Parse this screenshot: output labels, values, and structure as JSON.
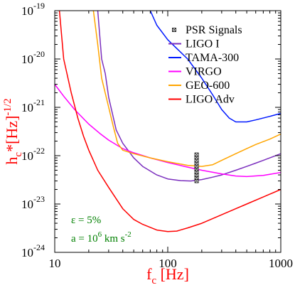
{
  "chart_data": {
    "type": "line",
    "xscale": "log",
    "yscale": "log",
    "xlim": [
      10,
      1000
    ],
    "ylim": [
      1e-24,
      1e-19
    ],
    "grid": false,
    "legend_position": "top-right",
    "xlabel": {
      "main": "f",
      "sub": "c",
      "units": " [Hz]",
      "color": "#ff0000"
    },
    "ylabel": {
      "main": "h",
      "sub": "c",
      "units": "*[Hz]",
      "sup": "-1/2",
      "color": "#ff0000"
    },
    "x_ticks": [
      {
        "value": 10,
        "label": "10"
      },
      {
        "value": 100,
        "label": "100"
      },
      {
        "value": 1000,
        "label": "1000"
      }
    ],
    "y_ticks": [
      {
        "value": 1e-19,
        "exponent": "-19"
      },
      {
        "value": 1e-20,
        "exponent": "-20"
      },
      {
        "value": 1e-21,
        "exponent": "-21"
      },
      {
        "value": 1e-22,
        "exponent": "-22"
      },
      {
        "value": 1e-23,
        "exponent": "-23"
      },
      {
        "value": 1e-24,
        "exponent": "-24"
      }
    ],
    "tick_base": "10",
    "series": [
      {
        "name": "LIGO I",
        "color": "#7b2fbe",
        "x": [
          24,
          26,
          28,
          30,
          35,
          40,
          50,
          60,
          80,
          100,
          130,
          160,
          200,
          250,
          300,
          400,
          500,
          600,
          700,
          800,
          1000
        ],
        "y": [
          1e-19,
          1e-20,
          5e-21,
          1.6e-21,
          3.4e-22,
          1.8e-22,
          9e-23,
          6e-23,
          4e-23,
          3.3e-23,
          3.05e-23,
          3e-23,
          3.2e-23,
          3.6e-23,
          4e-23,
          5e-23,
          6e-23,
          7e-23,
          8e-23,
          9e-23,
          1.1e-22
        ]
      },
      {
        "name": "TAMA-300",
        "color": "#0019ff",
        "x": [
          70,
          80,
          100,
          150,
          200,
          250,
          300,
          350,
          400,
          500,
          600,
          800,
          1000
        ],
        "y": [
          1e-19,
          5e-20,
          2.5e-20,
          1e-20,
          4e-21,
          1.8e-21,
          9e-22,
          6e-22,
          5e-22,
          5e-22,
          5.5e-22,
          6.5e-22,
          7.5e-22
        ]
      },
      {
        "name": "VIRGO",
        "color": "#ff00ff",
        "x": [
          10,
          12,
          15,
          20,
          25,
          30,
          40,
          50,
          70,
          100,
          150,
          200,
          300,
          400,
          500,
          700,
          1000
        ],
        "y": [
          3e-21,
          1.7e-21,
          9e-22,
          4.5e-22,
          2.9e-22,
          2.1e-22,
          1.4e-22,
          1.15e-22,
          9e-23,
          7.2e-23,
          5.8e-23,
          5e-23,
          4.2e-23,
          3.8e-23,
          3.7e-23,
          3.9e-23,
          4.5e-23
        ]
      },
      {
        "name": "GEO-600",
        "color": "#ffa500",
        "x": [
          22,
          24,
          26,
          30,
          33,
          36,
          40,
          50,
          70,
          100,
          150,
          200,
          250,
          300,
          400,
          500,
          600,
          800,
          1000
        ],
        "y": [
          1e-19,
          2e-20,
          4e-21,
          1e-21,
          4e-22,
          1.8e-22,
          1.3e-22,
          1.1e-22,
          9e-23,
          7.5e-23,
          6.3e-23,
          6e-23,
          6.5e-23,
          8e-23,
          1.1e-22,
          1.4e-22,
          1.7e-22,
          2.2e-22,
          2.8e-22
        ]
      },
      {
        "name": "LIGO Adv",
        "color": "#ff0000",
        "x": [
          11,
          12,
          14,
          16,
          18,
          20,
          24,
          30,
          40,
          50,
          60,
          80,
          100,
          120,
          150,
          200,
          300,
          400,
          500,
          700,
          1000
        ],
        "y": [
          1e-19,
          1e-20,
          2e-21,
          6e-22,
          2.5e-22,
          1.3e-22,
          5e-23,
          2.2e-23,
          8e-24,
          4.8e-24,
          3.8e-24,
          2.9e-24,
          2.7e-24,
          2.75e-24,
          3.2e-24,
          4e-24,
          6e-24,
          8e-24,
          1e-23,
          1.4e-23,
          2e-23
        ]
      }
    ],
    "scatter": {
      "name": "PSR Signals",
      "color": "#000000",
      "marker": "boxed-x",
      "x": 180,
      "y": [
        3e-23,
        3.5e-23,
        4e-23,
        4.6e-23,
        5.3e-23,
        6.1e-23,
        7e-23,
        8e-23,
        9.2e-23,
        1.05e-22
      ]
    },
    "annotations": [
      {
        "label": "ε = 5%",
        "color": "#008000"
      },
      {
        "main": "a = 10",
        "sup": "6",
        "rest": " km s",
        "sup2": "-2",
        "color": "#008000"
      }
    ]
  }
}
